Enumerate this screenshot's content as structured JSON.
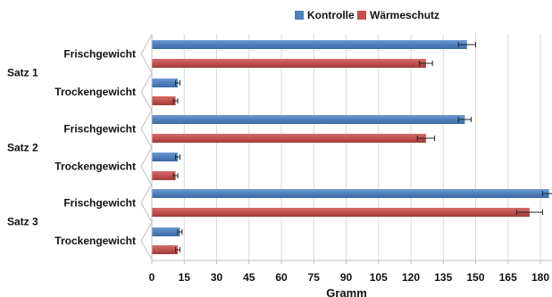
{
  "chart_data": {
    "type": "bar",
    "orientation": "horizontal",
    "groups": [
      {
        "label": "Satz 1",
        "categories": [
          "Frischgewicht",
          "Trockengewicht"
        ]
      },
      {
        "label": "Satz 2",
        "categories": [
          "Frischgewicht",
          "Trockengewicht"
        ]
      },
      {
        "label": "Satz 3",
        "categories": [
          "Frischgewicht",
          "Trockengewicht"
        ]
      }
    ],
    "series": [
      {
        "name": "Kontrolle",
        "color": "#4f81bd",
        "values": [
          146,
          12,
          145,
          12,
          184,
          13
        ],
        "errors": [
          4,
          1,
          3,
          1,
          3,
          1
        ]
      },
      {
        "name": "Wärmeschutz",
        "color": "#c0504d",
        "values": [
          127,
          11,
          127,
          11,
          175,
          12
        ],
        "errors": [
          3,
          1,
          4,
          1,
          6,
          1
        ]
      }
    ],
    "xlabel": "Gramm",
    "ylabel": "",
    "xlim": [
      0,
      185
    ],
    "ticks": [
      0,
      15,
      30,
      45,
      60,
      75,
      90,
      105,
      120,
      135,
      150,
      165,
      180
    ],
    "grid": true,
    "legend_position": "top-center"
  }
}
